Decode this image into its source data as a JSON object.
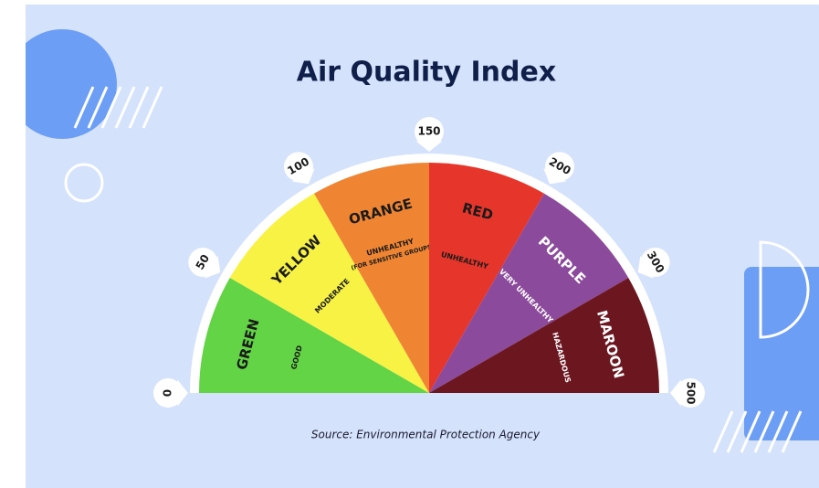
{
  "title": "Air Quality Index",
  "source": "Source: Environmental Protection Agency",
  "ticks": [
    "0",
    "50",
    "100",
    "150",
    "200",
    "300",
    "500"
  ],
  "segments": [
    {
      "name": "GREEN",
      "description": [
        "GOOD"
      ],
      "color": "#63d445"
    },
    {
      "name": "YELLOW",
      "description": [
        "MODERATE"
      ],
      "color": "#f7f244"
    },
    {
      "name": "ORANGE",
      "description": [
        "UNHEALTHY",
        "(FOR SENSITIVE GROUPS)"
      ],
      "color": "#ef8532"
    },
    {
      "name": "RED",
      "description": [
        "UNHEALTHY"
      ],
      "color": "#e6362b"
    },
    {
      "name": "PURPLE",
      "description": [
        "VERY UNHEALTHY"
      ],
      "color": "#8b4a9b"
    },
    {
      "name": "MAROON",
      "description": [
        "HAZARDOUS"
      ],
      "color": "#6c1720"
    }
  ]
}
